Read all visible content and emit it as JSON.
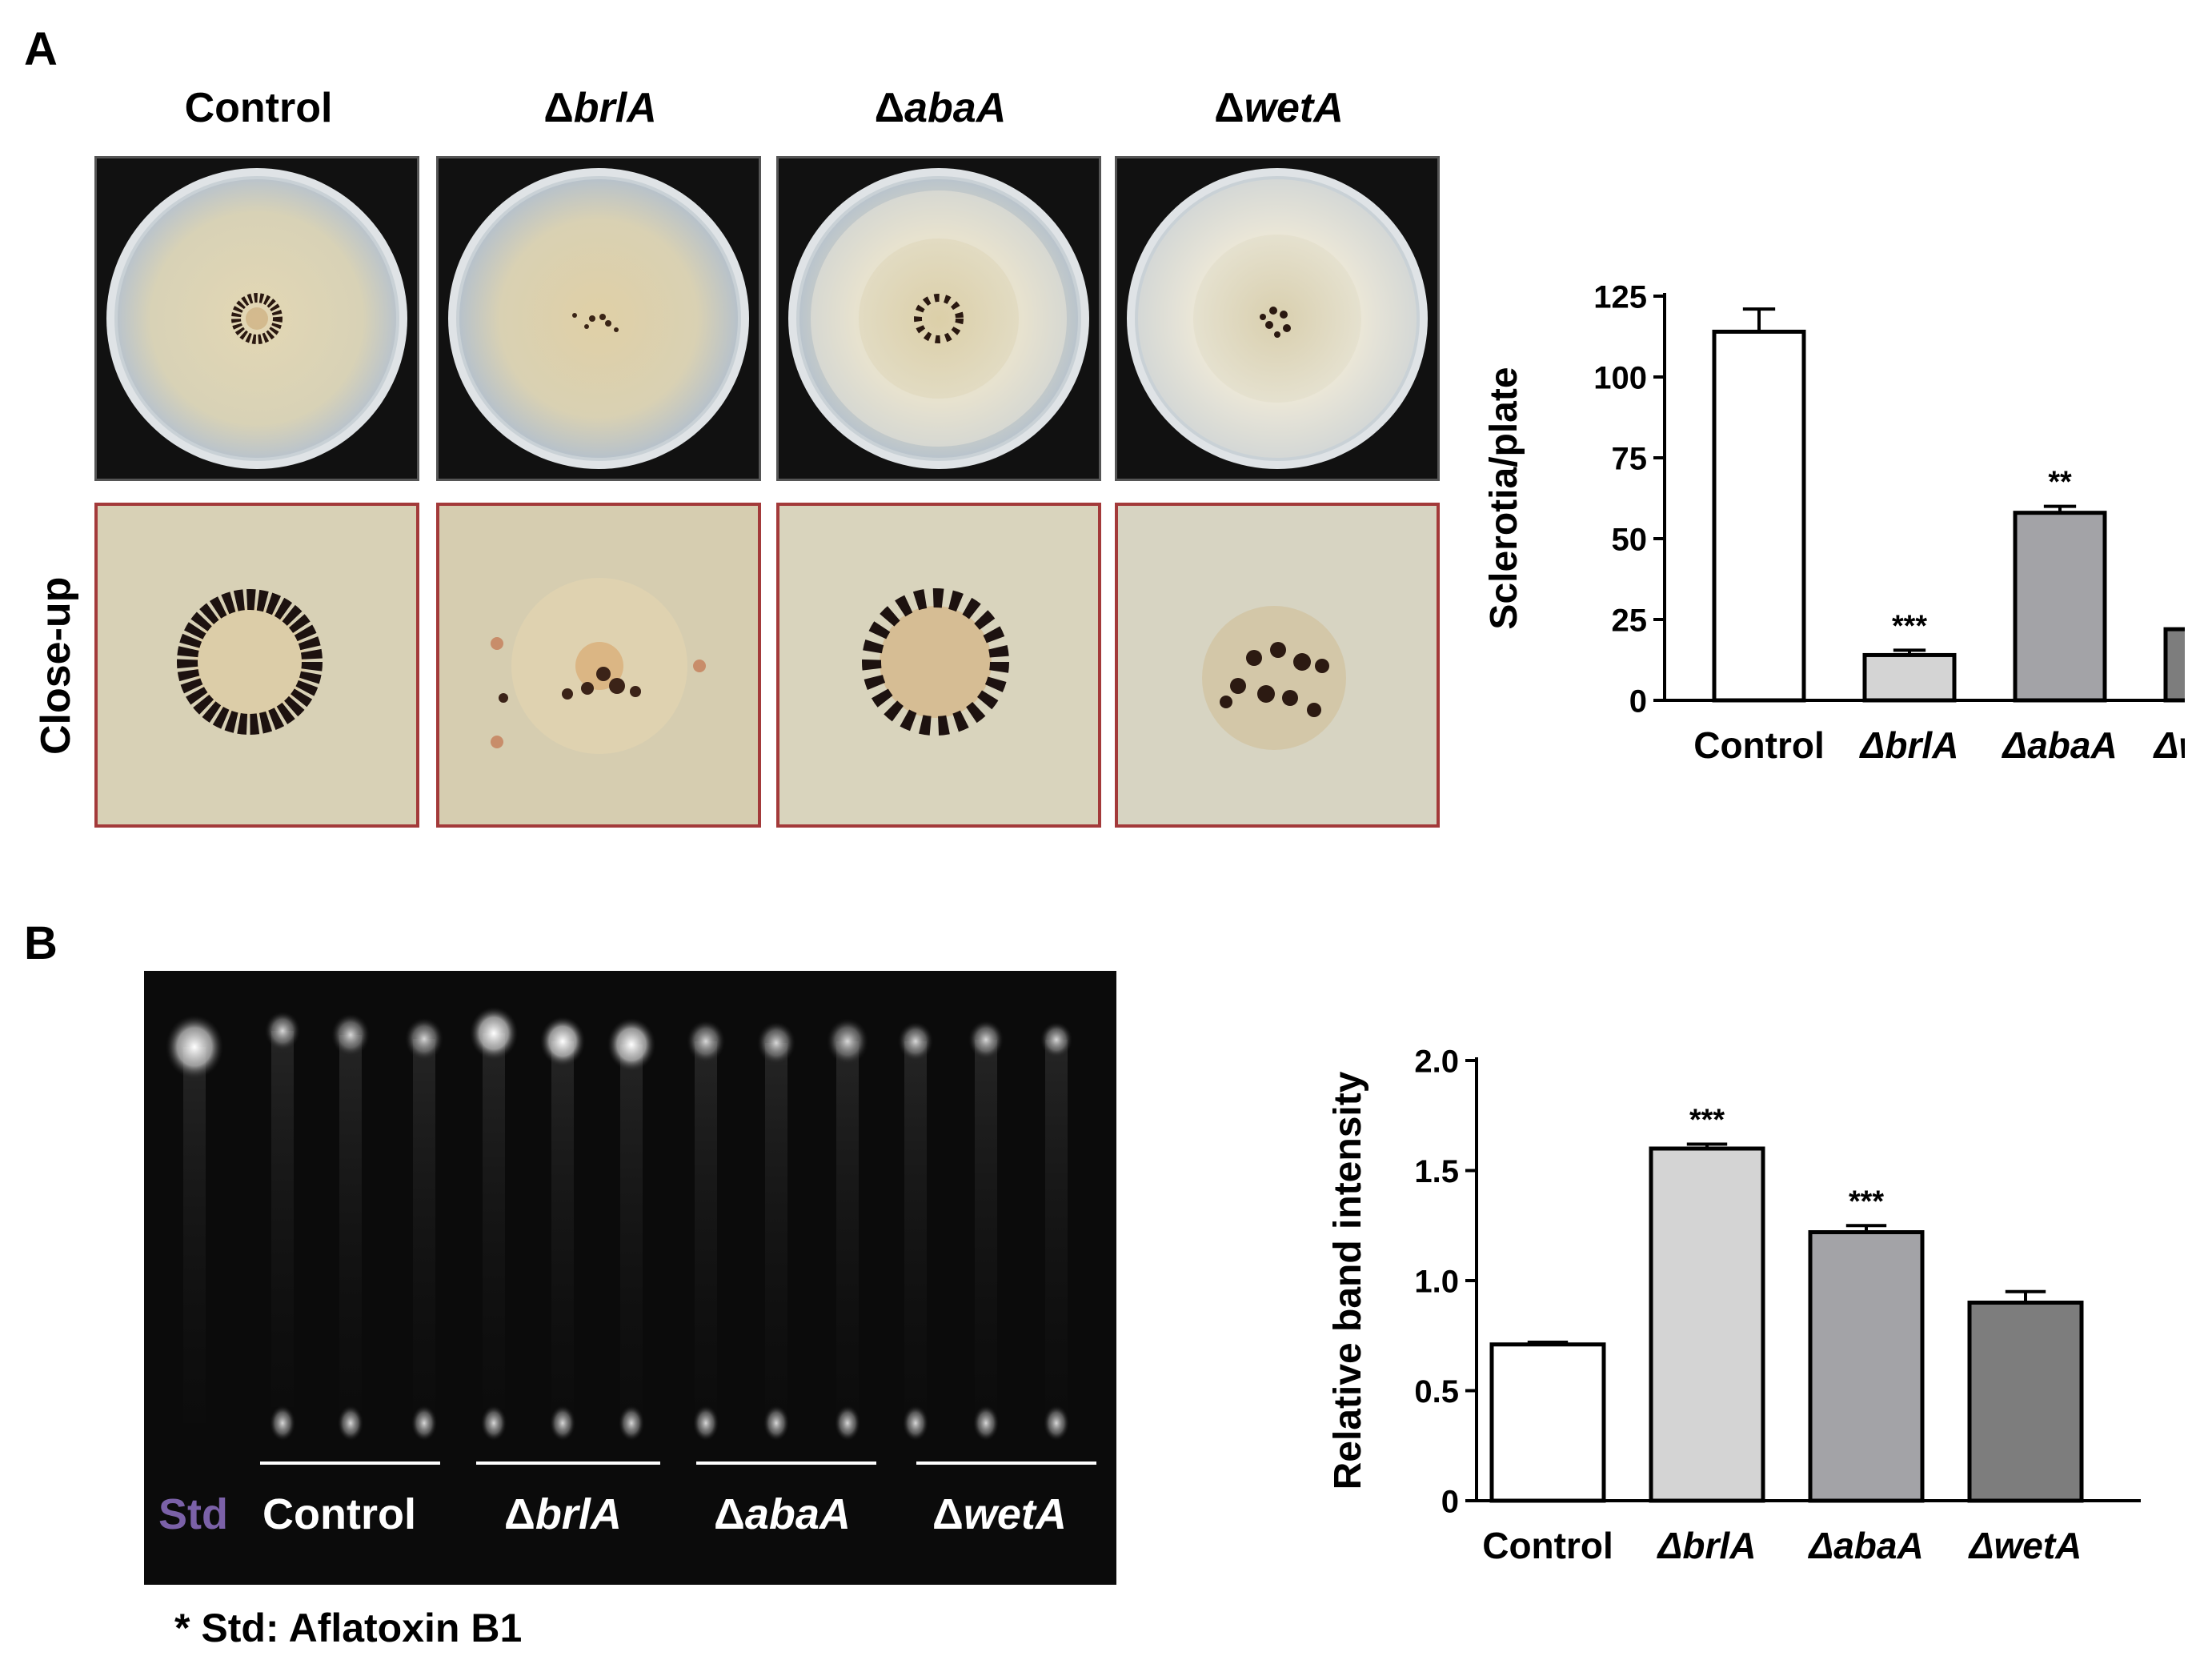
{
  "panel_a": {
    "letter": "A",
    "columns": [
      {
        "prefix": "",
        "name": "Control"
      },
      {
        "prefix": "Δ",
        "name": "brlA"
      },
      {
        "prefix": "Δ",
        "name": "abaA"
      },
      {
        "prefix": "Δ",
        "name": "wetA"
      }
    ],
    "row_label": "Close-up"
  },
  "panel_b": {
    "letter": "B",
    "std_label": "Std",
    "lane_groups": [
      {
        "prefix": "",
        "name": "Control"
      },
      {
        "prefix": "Δ",
        "name": "brlA"
      },
      {
        "prefix": "Δ",
        "name": "abaA"
      },
      {
        "prefix": "Δ",
        "name": "wetA"
      }
    ],
    "footnote": "* Std: Aflatoxin B1",
    "colors": {
      "std_label": "#7b61a8",
      "lane_label": "#ffffff",
      "gel_bg": "#0b0b0b"
    }
  },
  "chart_data": [
    {
      "type": "bar",
      "categories": [
        "Control",
        "ΔbrlA",
        "ΔabaA",
        "ΔwetA"
      ],
      "values": [
        114,
        14,
        58,
        22
      ],
      "errors": [
        7,
        1.5,
        2,
        2
      ],
      "significance": [
        "",
        "***",
        "**",
        "***"
      ],
      "ylabel": "Sclerotia/plate",
      "ylim": [
        0,
        125
      ],
      "yticks": [
        "0",
        "25",
        "50",
        "75",
        "100",
        "125"
      ],
      "ytick_values": [
        0,
        25,
        50,
        75,
        100,
        125
      ],
      "colors": [
        "#ffffff",
        "#d4d4d4",
        "#a3a3a7",
        "#7d7d7d"
      ],
      "grid": false
    },
    {
      "type": "bar",
      "categories": [
        "Control",
        "ΔbrlA",
        "ΔabaA",
        "ΔwetA"
      ],
      "values": [
        0.71,
        1.6,
        1.22,
        0.9
      ],
      "errors": [
        0.01,
        0.02,
        0.03,
        0.05
      ],
      "significance": [
        "",
        "***",
        "***",
        ""
      ],
      "ylabel": "Relative band intensity",
      "ylim": [
        0,
        2.0
      ],
      "yticks": [
        "0",
        "0.5",
        "1.0",
        "1.5",
        "2.0"
      ],
      "ytick_values": [
        0,
        0.5,
        1.0,
        1.5,
        2.0
      ],
      "colors": [
        "#ffffff",
        "#d4d4d4",
        "#a3a3a7",
        "#7d7d7d"
      ],
      "grid": false
    }
  ]
}
